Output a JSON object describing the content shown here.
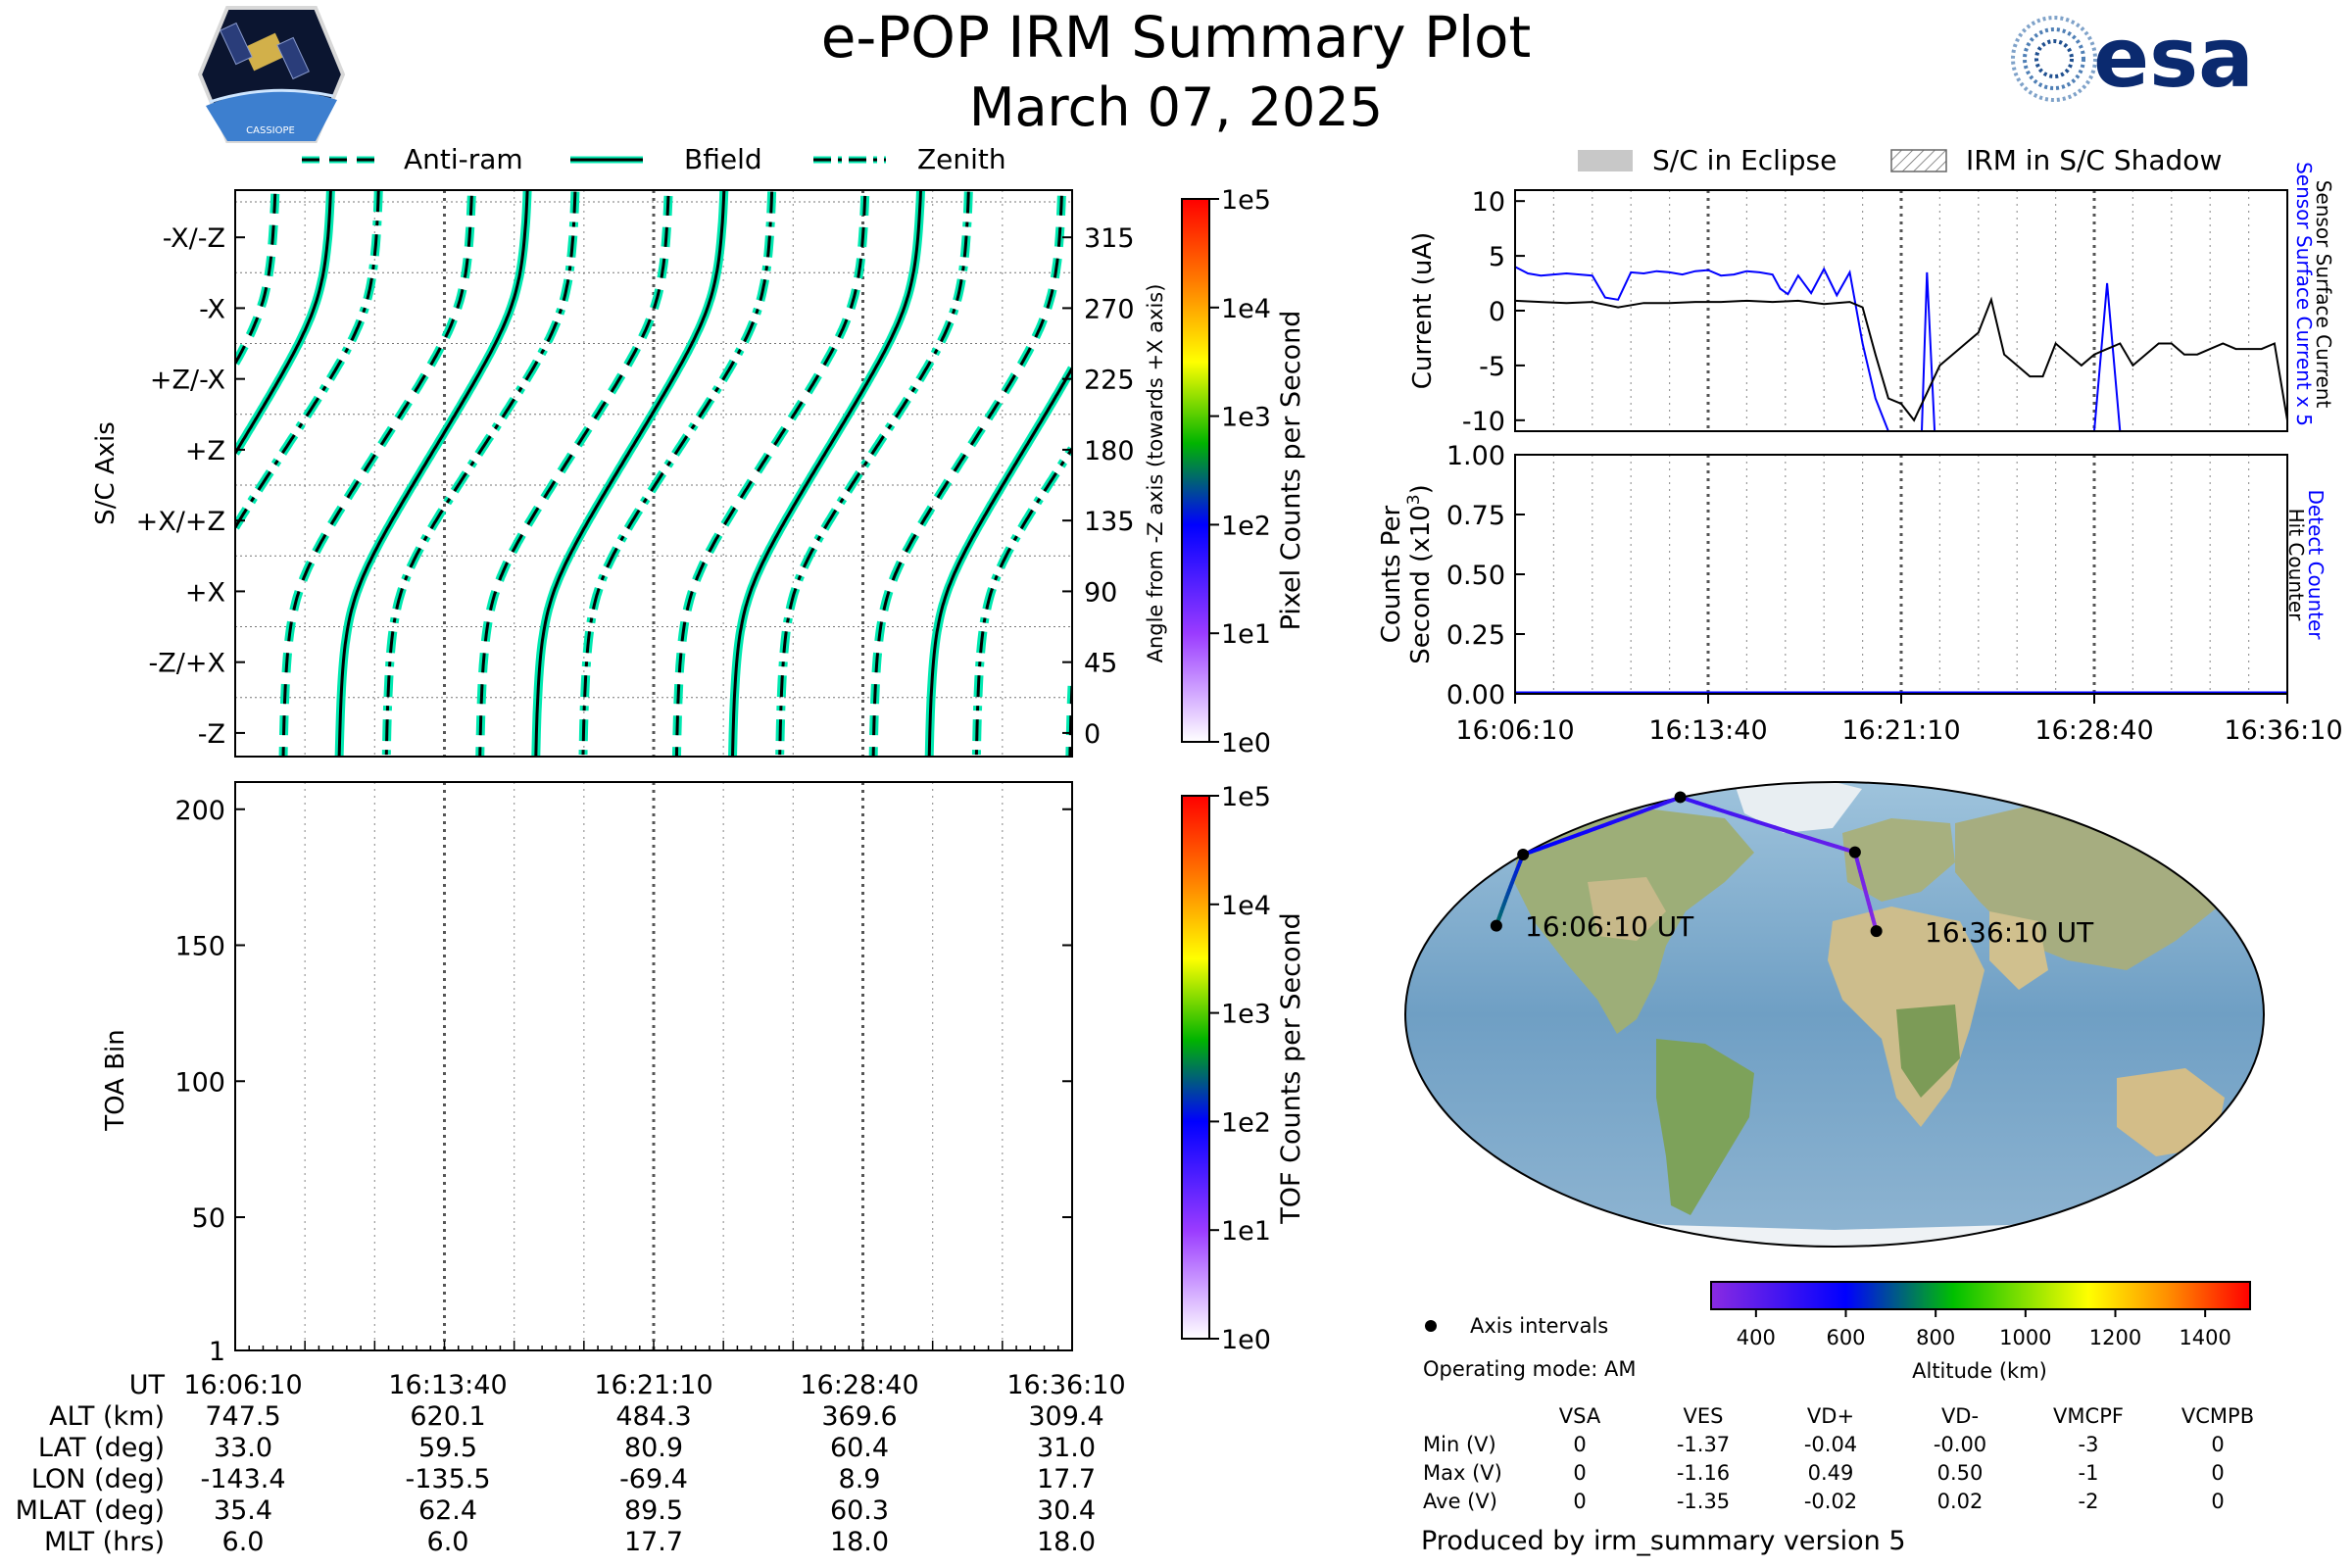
{
  "header": {
    "title": "e-POP IRM Summary Plot",
    "date": "March 07, 2025",
    "esa_logo_text": "esa",
    "cassiope_logo_text": "CASSIOPE"
  },
  "colors": {
    "attitude_line": "#00e8b0",
    "attitude_edge": "#000000",
    "sensor_current": "#0000ff",
    "surface_current": "#000000",
    "altitude_cmap": [
      "#8a2be2",
      "#0000ff",
      "#00c000",
      "#ffff00",
      "#ff8c00",
      "#ff0000"
    ],
    "counts_cmap": [
      "#ffffff",
      "#9a3bff",
      "#0000ff",
      "#00b400",
      "#ffff00",
      "#ff7a00",
      "#ff0000"
    ]
  },
  "chart_data": [
    {
      "id": "attitude",
      "type": "line",
      "title": "",
      "ylabel": "S/C Axis",
      "y2label": "Angle from -Z axis (towards +X axis)",
      "ylim": [
        -15,
        345
      ],
      "y_axis_labels": [
        {
          "label": "-Z",
          "angle": 0
        },
        {
          "label": "-Z/+X",
          "angle": 45
        },
        {
          "label": "+X",
          "angle": 90
        },
        {
          "label": "+X/+Z",
          "angle": 135
        },
        {
          "label": "+Z",
          "angle": 180
        },
        {
          "label": "+Z/-X",
          "angle": 225
        },
        {
          "label": "-X",
          "angle": 270
        },
        {
          "label": "-X/-Z",
          "angle": 315
        }
      ],
      "y2_ticks": [
        0,
        45,
        90,
        135,
        180,
        225,
        270,
        315
      ],
      "legend": [
        "Anti-ram",
        "Bfield",
        "Zenith"
      ],
      "legend_position": "above",
      "colorbar": {
        "label": "Pixel Counts per Second",
        "ticks": [
          "1e0",
          "1e1",
          "1e2",
          "1e3",
          "1e4",
          "1e5"
        ]
      },
      "series": [
        {
          "name": "Bfield",
          "style": "solid",
          "period_min": 7.05,
          "offset_min": 3.6,
          "amplitude_deg": 94
        },
        {
          "name": "Anti-ram",
          "style": "dashed",
          "period_min": 7.05,
          "offset_min": 1.6,
          "amplitude_deg": 88
        },
        {
          "name": "Zenith",
          "style": "dashdot",
          "period_min": 7.05,
          "offset_min": 5.3,
          "amplitude_deg": 86
        }
      ]
    },
    {
      "id": "toa",
      "type": "heatmap",
      "ylabel": "TOA Bin",
      "ylim": [
        1,
        210
      ],
      "y_ticks": [
        1,
        50,
        100,
        150,
        200
      ],
      "colorbar": {
        "label": "TOF Counts per Second",
        "ticks": [
          "1e0",
          "1e1",
          "1e2",
          "1e3",
          "1e4",
          "1e5"
        ]
      },
      "values": []
    },
    {
      "id": "current",
      "type": "line",
      "ylabel": "Current (uA)",
      "y2label_blue": "Sensor Surface Current x 5",
      "y2label_black": "Sensor Surface Current",
      "ylim": [
        -11,
        11
      ],
      "y_ticks": [
        10,
        5,
        0,
        -5,
        -10
      ],
      "legend": [
        "S/C in Eclipse",
        "IRM in S/C Shadow"
      ],
      "legend_position": "above",
      "series": [
        {
          "name": "Sensor Surface Current x 5",
          "color": "#0000ff",
          "x": [
            0,
            0.5,
            1,
            1.5,
            2,
            2.5,
            3,
            3.5,
            4,
            4.5,
            5,
            5.5,
            6,
            6.5,
            7,
            7.5,
            8,
            8.5,
            9,
            9.5,
            10,
            10.3,
            10.6,
            11,
            11.5,
            12,
            12.5,
            13,
            13.5,
            14,
            14.5,
            15,
            15.5,
            15.8,
            16,
            16.3,
            16.6,
            17,
            17.5,
            18,
            18.5,
            19,
            19.5,
            20,
            20.5,
            21,
            21.5,
            22,
            22.5,
            23,
            23.5,
            24,
            24.5,
            25,
            25.5,
            26,
            26.5,
            27,
            27.5,
            28,
            28.5,
            29,
            29.5,
            30
          ],
          "y": [
            4.0,
            3.4,
            3.2,
            3.3,
            3.4,
            3.3,
            3.2,
            1.2,
            1.0,
            3.5,
            3.4,
            3.6,
            3.5,
            3.3,
            3.6,
            3.7,
            3.2,
            3.3,
            3.6,
            3.5,
            3.3,
            2.0,
            1.5,
            3.2,
            1.6,
            3.8,
            1.4,
            3.5,
            -3,
            -8,
            -11,
            -11,
            -11,
            -11,
            3.5,
            -11,
            -11,
            -11,
            -11,
            -11,
            -11,
            -11,
            -11,
            -11,
            -11,
            -11,
            -11,
            -11,
            -11,
            2.5,
            -11,
            -11,
            -11,
            -11,
            -11,
            -11,
            -11,
            -11,
            -11,
            -11,
            -11,
            -11,
            -11,
            -11
          ]
        },
        {
          "name": "Sensor Surface Current",
          "color": "#000000",
          "x": [
            0,
            1,
            2,
            3,
            4,
            5,
            6,
            7,
            8,
            9,
            10,
            11,
            12,
            13,
            13.5,
            14,
            14.5,
            15,
            15.5,
            16,
            16.5,
            17,
            17.5,
            18,
            18.5,
            19,
            19.5,
            20,
            20.5,
            21,
            21.5,
            22,
            22.5,
            23,
            23.5,
            24,
            24.5,
            25,
            25.5,
            26,
            26.5,
            27,
            27.5,
            28,
            28.5,
            29,
            29.5,
            30
          ],
          "y": [
            0.9,
            0.8,
            0.7,
            0.8,
            0.3,
            0.7,
            0.7,
            0.8,
            0.8,
            0.9,
            0.8,
            0.9,
            0.6,
            0.8,
            0.3,
            -4,
            -8,
            -8.5,
            -10,
            -7.5,
            -5,
            -4,
            -3,
            -2,
            1,
            -4,
            -5,
            -6,
            -6,
            -3,
            -4,
            -5,
            -4,
            -3.5,
            -3,
            -5,
            -4,
            -3,
            -3,
            -4,
            -4,
            -3.5,
            -3,
            -3.5,
            -3.5,
            -3.5,
            -3,
            -10
          ]
        }
      ]
    },
    {
      "id": "counts",
      "type": "line",
      "ylabel": "Counts Per Second (x10³)",
      "y2label_blue": "Detect Counter",
      "y2label_black": "Hit Counter",
      "ylim": [
        0,
        1
      ],
      "y_ticks": [
        "1.00",
        "0.75",
        "0.50",
        "0.25",
        "0.00"
      ],
      "x_ticks": [
        "16:06:10",
        "16:13:40",
        "16:21:10",
        "16:28:40",
        "16:36:10"
      ],
      "series": [
        {
          "name": "Detect Counter",
          "color": "#0000ff",
          "x": [
            0,
            30
          ],
          "y": [
            0,
            0
          ]
        },
        {
          "name": "Hit Counter",
          "color": "#000000",
          "x": [
            0,
            30
          ],
          "y": [
            0,
            0
          ]
        }
      ]
    },
    {
      "id": "map",
      "type": "scatter",
      "start_label": "16:06:10 UT",
      "end_label": "16:36:10 UT",
      "colorbar_label": "Altitude (km)",
      "colorbar_ticks": [
        400,
        600,
        800,
        1000,
        1200,
        1400
      ],
      "colorbar_range": [
        300,
        1500
      ],
      "legend": [
        "Axis intervals"
      ],
      "points": [
        {
          "lat": 33.0,
          "lon": -143.4,
          "alt": 747.5
        },
        {
          "lat": 59.5,
          "lon": -135.5,
          "alt": 620.1
        },
        {
          "lat": 80.9,
          "lon": -69.4,
          "alt": 484.3
        },
        {
          "lat": 60.4,
          "lon": 8.9,
          "alt": 369.6
        },
        {
          "lat": 31.0,
          "lon": 17.7,
          "alt": 309.4
        }
      ]
    }
  ],
  "ephemeris": {
    "labels": [
      "UT",
      "ALT (km)",
      "LAT (deg)",
      "LON (deg)",
      "MLAT (deg)",
      "MLT (hrs)"
    ],
    "columns": [
      [
        "16:06:10",
        "747.5",
        "33.0",
        "-143.4",
        "35.4",
        "6.0"
      ],
      [
        "16:13:40",
        "620.1",
        "59.5",
        "-135.5",
        "62.4",
        "6.0"
      ],
      [
        "16:21:10",
        "484.3",
        "80.9",
        "-69.4",
        "89.5",
        "17.7"
      ],
      [
        "16:28:40",
        "369.6",
        "60.4",
        "8.9",
        "60.3",
        "18.0"
      ],
      [
        "16:36:10",
        "309.4",
        "31.0",
        "17.7",
        "30.4",
        "18.0"
      ]
    ]
  },
  "info": {
    "operating_mode": "Operating mode: AM",
    "voltage_headers": [
      "VSA",
      "VES",
      "VD+",
      "VD-",
      "VMCPF",
      "VCMPB"
    ],
    "voltage_rows": [
      {
        "label": "Min (V)",
        "values": [
          "0",
          "-1.37",
          "-0.04",
          "-0.00",
          "-3",
          "0"
        ]
      },
      {
        "label": "Max (V)",
        "values": [
          "0",
          "-1.16",
          "0.49",
          "0.50",
          "-1",
          "0"
        ]
      },
      {
        "label": "Ave (V)",
        "values": [
          "0",
          "-1.35",
          "-0.02",
          "0.02",
          "-2",
          "0"
        ]
      }
    ],
    "produced_by": "Produced by irm_summary version 5"
  }
}
